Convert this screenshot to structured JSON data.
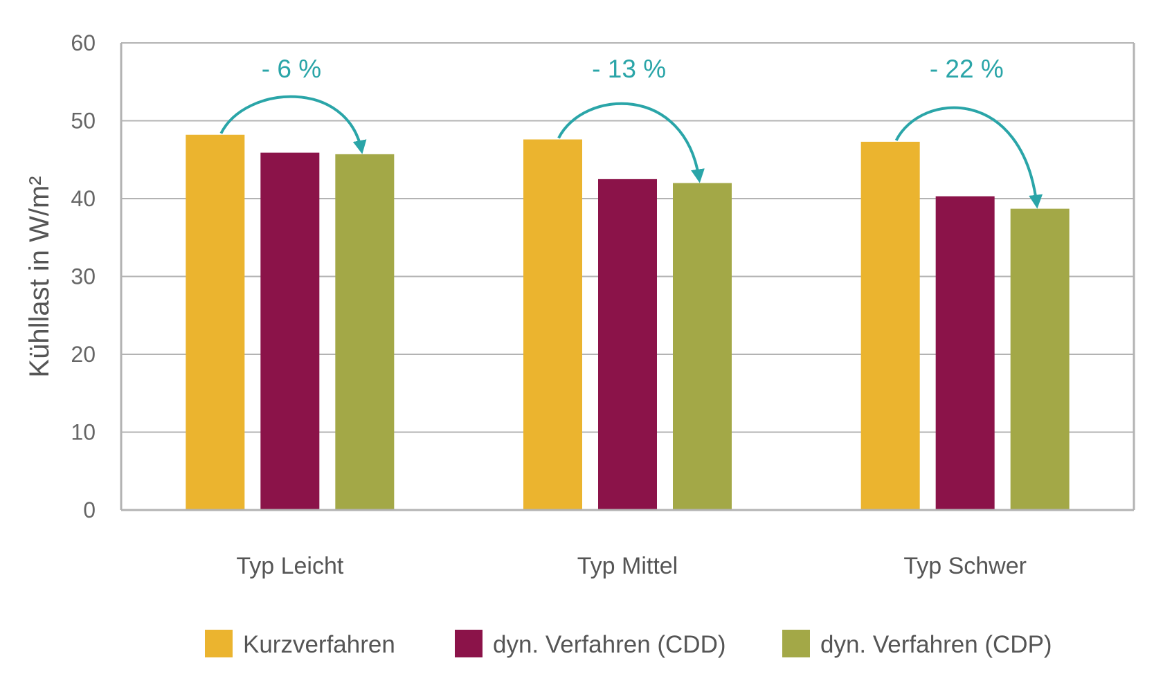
{
  "chart_data": {
    "type": "bar",
    "title": "",
    "xlabel": "",
    "ylabel": "Kühllast in W/m²",
    "ylim": [
      0,
      60
    ],
    "yticks": [
      0,
      10,
      20,
      30,
      40,
      50,
      60
    ],
    "grid": true,
    "legend_position": "bottom",
    "categories": [
      "Typ Leicht",
      "Typ Mittel",
      "Typ Schwer"
    ],
    "series": [
      {
        "name": "Kurzverfahren",
        "color": "#ebb42f",
        "values": [
          48.2,
          47.6,
          47.3
        ]
      },
      {
        "name": "dyn. Verfahren (CDD)",
        "color": "#8b1349",
        "values": [
          45.9,
          42.5,
          40.3
        ]
      },
      {
        "name": "dyn. Verfahren (CDP)",
        "color": "#a3a847",
        "values": [
          45.7,
          42.0,
          38.7
        ]
      }
    ],
    "annotations": [
      {
        "category": "Typ Leicht",
        "text": "- 6 %",
        "from_series": 0,
        "to_series": 2
      },
      {
        "category": "Typ Mittel",
        "text": "- 13 %",
        "from_series": 0,
        "to_series": 2
      },
      {
        "category": "Typ Schwer",
        "text": "- 22 %",
        "from_series": 0,
        "to_series": 2
      }
    ],
    "annotation_color": "#2aa5a8",
    "grid_color": "#b3b3b3"
  }
}
